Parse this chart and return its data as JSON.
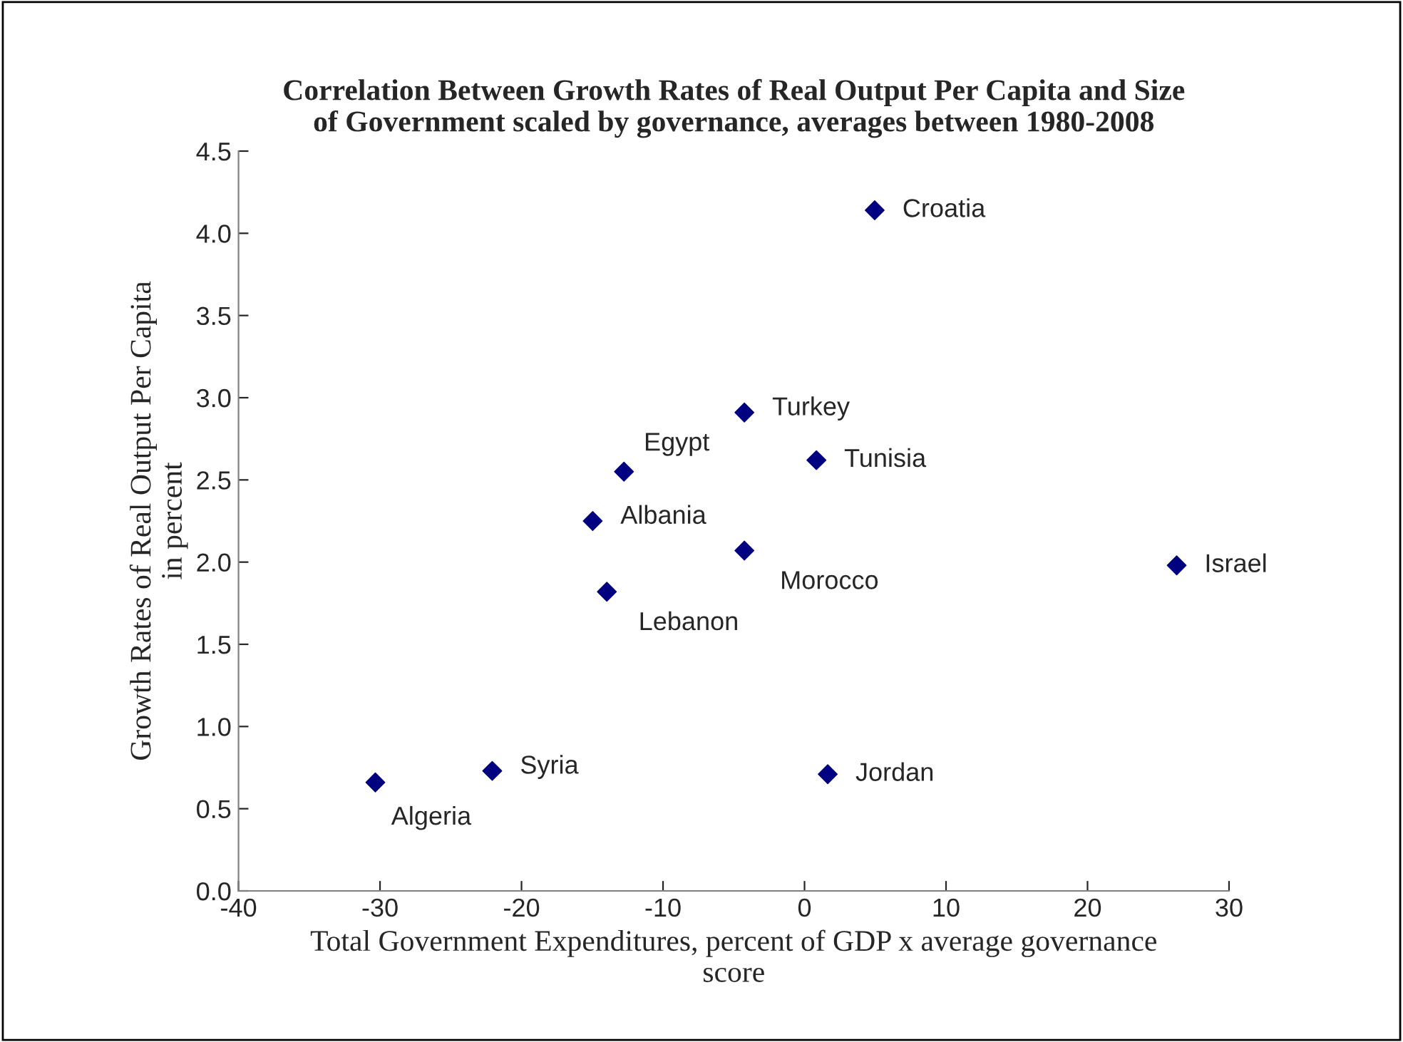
{
  "chart_data": {
    "type": "scatter",
    "title": "Correlation Between Growth Rates of Real Output Per Capita and Size\nof Government scaled by governance, averages between 1980-2008",
    "xlabel": "Total Government Expenditures, percent of GDP x average governance\nscore",
    "ylabel": "Growth Rates of Real Output Per Capita\nin percent",
    "series": [
      {
        "color": "#000080",
        "x": [
          4.96,
          -4.25,
          0.84,
          -12.76,
          -14.97,
          -4.25,
          -13.97,
          26.3,
          -22.07,
          -30.33,
          1.64
        ],
        "values": [
          4.14,
          2.91,
          2.62,
          2.55,
          2.25,
          2.07,
          1.82,
          1.98,
          0.73,
          0.66,
          0.71
        ]
      }
    ],
    "annotations": [
      {
        "text": "Croatia",
        "x": 4.96,
        "y": 4.14
      },
      {
        "text": "Turkey",
        "x": -4.25,
        "y": 2.91
      },
      {
        "text": "Tunisia",
        "x": 0.84,
        "y": 2.62
      },
      {
        "text": "Egypt",
        "x": -12.76,
        "y": 2.55
      },
      {
        "text": "Albania",
        "x": -14.97,
        "y": 2.25
      },
      {
        "text": "Morocco",
        "x": -4.25,
        "y": 2.07
      },
      {
        "text": "Lebanon",
        "x": -13.97,
        "y": 1.82
      },
      {
        "text": "Israel",
        "x": 26.3,
        "y": 1.98
      },
      {
        "text": "Syria",
        "x": -22.07,
        "y": 0.73
      },
      {
        "text": "Algeria",
        "x": -30.33,
        "y": 0.66
      },
      {
        "text": "Jordan",
        "x": 1.64,
        "y": 0.71
      }
    ],
    "xlim": [
      -40,
      30
    ],
    "xticks": [
      -40,
      -30,
      -20,
      -10,
      0,
      10,
      20,
      30
    ],
    "ylim": [
      0,
      4.5
    ],
    "yticks": [
      {
        "value": 0,
        "label": "0.0"
      },
      {
        "value": 0.5,
        "label": "0.5"
      },
      {
        "value": 1,
        "label": "1.0"
      },
      {
        "value": 1.5,
        "label": "1.5"
      },
      {
        "value": 2,
        "label": "2.0"
      },
      {
        "value": 2.5,
        "label": "2.5"
      },
      {
        "value": 3,
        "label": "3.0"
      },
      {
        "value": 3.5,
        "label": "3.5"
      },
      {
        "value": 4,
        "label": "4.0"
      },
      {
        "value": 4.5,
        "label": "4.5"
      }
    ],
    "marker": "diamond",
    "grid": false,
    "legend": false
  }
}
